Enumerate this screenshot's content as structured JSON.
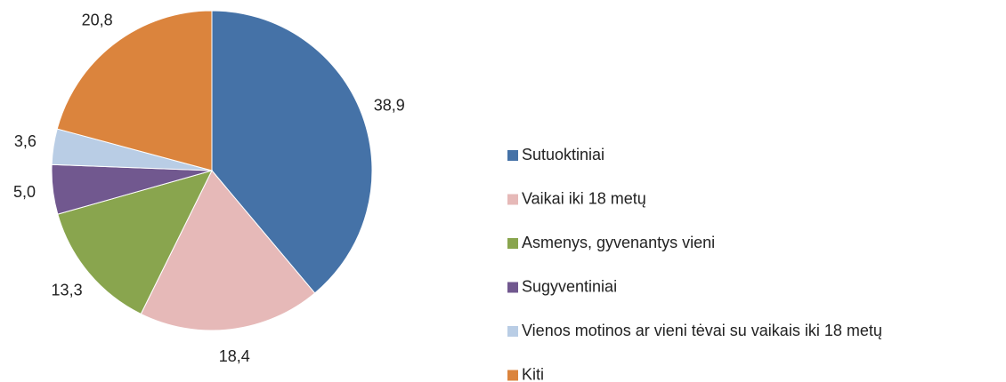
{
  "chart_data": {
    "type": "pie",
    "categories": [
      "Sutuoktiniai",
      "Vaikai iki 18 metų",
      "Asmenys, gyvenantys vieni",
      "Sugyventiniai",
      "Vienos motinos ar vieni tėvai su vaikais iki 18 metų",
      "Kiti"
    ],
    "values": [
      38.9,
      18.4,
      13.3,
      5.0,
      3.6,
      20.8
    ],
    "value_labels": [
      "38,9",
      "18,4",
      "13,3",
      "5,0",
      "3,6",
      "20,8"
    ],
    "colors": [
      "#4572a7",
      "#e6b9b8",
      "#89a54e",
      "#71588f",
      "#b9cde5",
      "#db843d"
    ],
    "legend": "right"
  }
}
